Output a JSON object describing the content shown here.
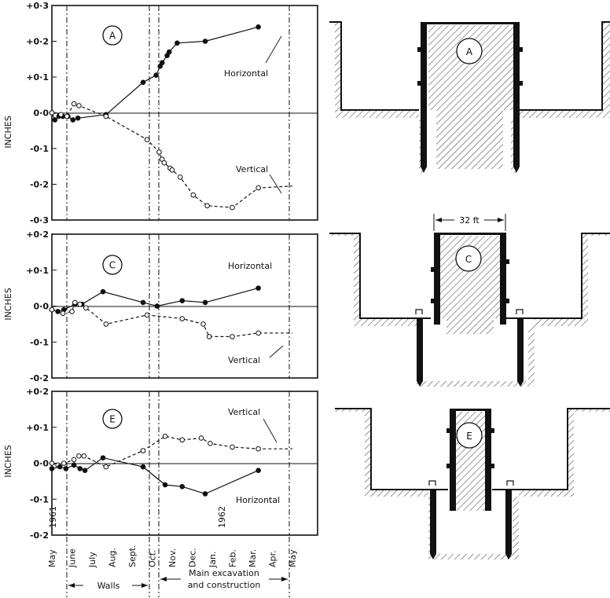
{
  "chart_data": {
    "type": "line",
    "x_categories": [
      "May",
      "June",
      "July",
      "Aug.",
      "Sept.",
      "Oct.",
      "Nov.",
      "Dec.",
      "Jan.",
      "Feb.",
      "Mar.",
      "Apr.",
      "May"
    ],
    "year_labels": [
      "1961",
      "1962"
    ],
    "phases": [
      {
        "label": "Walls"
      },
      {
        "label": "Main excavation and construction"
      }
    ],
    "panels": [
      {
        "id": "A",
        "ylabel": "INCHES",
        "ylim": [
          -0.3,
          0.3
        ],
        "yticks": [
          "+0·3",
          "+0·2",
          "+0·1",
          "0·0",
          "-0·1",
          "-0·2",
          "-0·3"
        ],
        "series": [
          {
            "name": "Horizontal",
            "style": "solid",
            "marker": "filled",
            "points": [
              [
                0.0,
                0.0
              ],
              [
                0.15,
                -0.02
              ],
              [
                0.35,
                -0.01
              ],
              [
                0.55,
                -0.01
              ],
              [
                0.8,
                -0.01
              ],
              [
                1.05,
                -0.02
              ],
              [
                1.3,
                -0.015
              ],
              [
                2.7,
                -0.005
              ],
              [
                4.55,
                0.085
              ],
              [
                5.2,
                0.105
              ],
              [
                5.4,
                0.13
              ],
              [
                5.5,
                0.14
              ],
              [
                5.75,
                0.16
              ],
              [
                5.85,
                0.17
              ],
              [
                6.25,
                0.195
              ],
              [
                7.65,
                0.2
              ],
              [
                10.3,
                0.24
              ]
            ]
          },
          {
            "name": "Vertical",
            "style": "dashed",
            "marker": "open",
            "points": [
              [
                0.0,
                0.0
              ],
              [
                0.45,
                -0.005
              ],
              [
                0.75,
                -0.01
              ],
              [
                1.1,
                0.025
              ],
              [
                1.35,
                0.02
              ],
              [
                2.7,
                -0.01
              ],
              [
                4.75,
                -0.075
              ],
              [
                5.35,
                -0.11
              ],
              [
                5.5,
                -0.13
              ],
              [
                5.6,
                -0.14
              ],
              [
                5.9,
                -0.155
              ],
              [
                6.0,
                -0.16
              ],
              [
                6.4,
                -0.18
              ],
              [
                7.05,
                -0.23
              ],
              [
                7.75,
                -0.26
              ],
              [
                9.0,
                -0.265
              ],
              [
                10.3,
                -0.21
              ],
              [
                12.0,
                -0.205
              ]
            ]
          }
        ]
      },
      {
        "id": "C",
        "ylabel": "INCHES",
        "ylim": [
          -0.2,
          0.2
        ],
        "yticks": [
          "+0·2",
          "+0·1",
          "0·0",
          "-0·1",
          "-0·2"
        ],
        "series": [
          {
            "name": "Horizontal",
            "style": "solid",
            "marker": "filled",
            "points": [
              [
                0.0,
                -0.01
              ],
              [
                0.3,
                -0.015
              ],
              [
                0.6,
                -0.01
              ],
              [
                1.15,
                0.005
              ],
              [
                1.5,
                0.005
              ],
              [
                2.55,
                0.04
              ],
              [
                4.55,
                0.01
              ],
              [
                5.25,
                0.0
              ],
              [
                6.5,
                0.015
              ],
              [
                7.65,
                0.01
              ],
              [
                10.3,
                0.05
              ]
            ]
          },
          {
            "name": "Vertical",
            "style": "dashed",
            "marker": "open",
            "points": [
              [
                0.0,
                -0.01
              ],
              [
                0.55,
                -0.02
              ],
              [
                1.0,
                -0.015
              ],
              [
                1.15,
                0.01
              ],
              [
                1.4,
                0.005
              ],
              [
                1.7,
                -0.005
              ],
              [
                2.7,
                -0.05
              ],
              [
                4.75,
                -0.025
              ],
              [
                6.5,
                -0.035
              ],
              [
                7.55,
                -0.05
              ],
              [
                7.85,
                -0.085
              ],
              [
                9.0,
                -0.085
              ],
              [
                10.3,
                -0.075
              ],
              [
                12.0,
                -0.075
              ]
            ]
          }
        ]
      },
      {
        "id": "E",
        "ylabel": "INCHES",
        "ylim": [
          -0.2,
          0.2
        ],
        "yticks": [
          "+0·2",
          "+0·1",
          "0·0",
          "-0·1",
          "-0·2"
        ],
        "series": [
          {
            "name": "Vertical",
            "style": "dashed",
            "marker": "open",
            "points": [
              [
                0.0,
                0.0
              ],
              [
                0.3,
                -0.005
              ],
              [
                0.6,
                0.0
              ],
              [
                1.1,
                0.01
              ],
              [
                1.35,
                0.02
              ],
              [
                1.6,
                0.02
              ],
              [
                2.7,
                -0.01
              ],
              [
                4.55,
                0.035
              ],
              [
                5.65,
                0.075
              ],
              [
                6.5,
                0.065
              ],
              [
                7.45,
                0.07
              ],
              [
                7.9,
                0.055
              ],
              [
                9.0,
                0.045
              ],
              [
                10.3,
                0.04
              ],
              [
                12.0,
                0.04
              ]
            ]
          },
          {
            "name": "Horizontal",
            "style": "solid",
            "marker": "filled",
            "points": [
              [
                0.0,
                -0.015
              ],
              [
                0.4,
                -0.01
              ],
              [
                0.7,
                -0.015
              ],
              [
                1.1,
                -0.005
              ],
              [
                1.4,
                -0.015
              ],
              [
                1.65,
                -0.02
              ],
              [
                2.55,
                0.015
              ],
              [
                4.55,
                -0.01
              ],
              [
                5.65,
                -0.06
              ],
              [
                6.5,
                -0.065
              ],
              [
                7.65,
                -0.085
              ],
              [
                10.3,
                -0.02
              ]
            ]
          }
        ]
      }
    ]
  },
  "sections": [
    {
      "label": "A"
    },
    {
      "label": "C"
    },
    {
      "label": "E"
    }
  ],
  "dimension_label": "32 ft"
}
